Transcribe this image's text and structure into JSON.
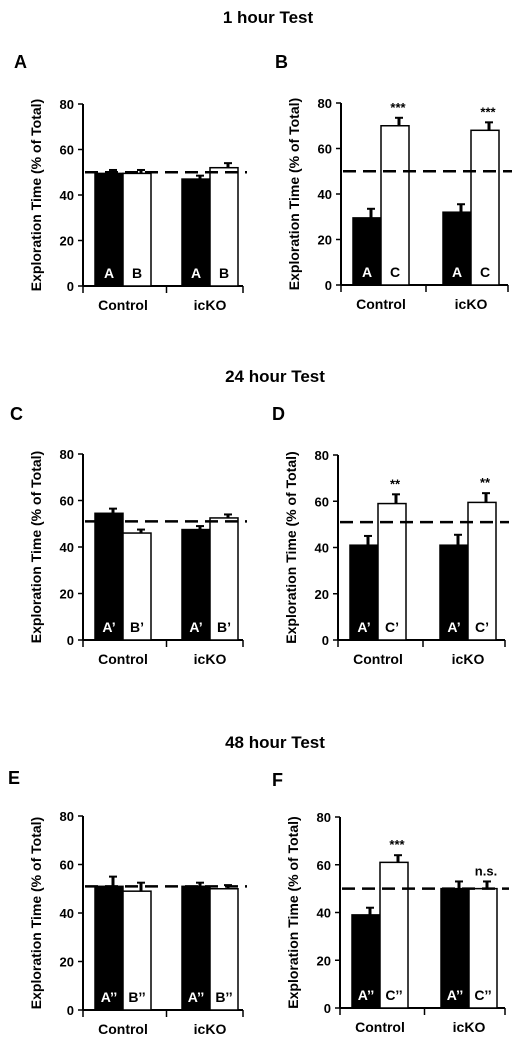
{
  "sections": [
    {
      "title": "1 hour Test"
    },
    {
      "title": "24 hour Test"
    },
    {
      "title": "48 hour Test"
    }
  ],
  "colors": {
    "filled_bar": "#000000",
    "open_bar": "#ffffff",
    "axis": "#000000"
  },
  "chart_data": [
    {
      "panel": "A",
      "type": "bar",
      "ylabel": "Exploration Time (% of Total)",
      "ylim": [
        0,
        80
      ],
      "yticks": [
        0,
        20,
        40,
        60,
        80
      ],
      "reference_line": 50,
      "grid": false,
      "categories": [
        "Control",
        "icKO"
      ],
      "series": [
        {
          "bar_labels": [
            "A",
            "A"
          ],
          "fill": "filled",
          "values": [
            49.5,
            47
          ],
          "errors": [
            1.5,
            1.5
          ],
          "significance": [
            "",
            ""
          ]
        },
        {
          "bar_labels": [
            "B",
            "B"
          ],
          "fill": "open",
          "values": [
            49.5,
            52
          ],
          "errors": [
            1.5,
            2
          ],
          "significance": [
            "",
            ""
          ]
        }
      ]
    },
    {
      "panel": "B",
      "type": "bar",
      "ylabel": "Exploration Time (% of Total)",
      "ylim": [
        0,
        80
      ],
      "yticks": [
        0,
        20,
        40,
        60,
        80
      ],
      "reference_line": 50,
      "grid": false,
      "categories": [
        "Control",
        "icKO"
      ],
      "series": [
        {
          "bar_labels": [
            "A",
            "A"
          ],
          "fill": "filled",
          "values": [
            29.5,
            32
          ],
          "errors": [
            4,
            3.5
          ],
          "significance": [
            "",
            ""
          ]
        },
        {
          "bar_labels": [
            "C",
            "C"
          ],
          "fill": "open",
          "values": [
            70,
            68
          ],
          "errors": [
            3.5,
            3.5
          ],
          "significance": [
            "***",
            "***"
          ]
        }
      ]
    },
    {
      "panel": "C",
      "type": "bar",
      "ylabel": "Exploration Time (% of Total)",
      "ylim": [
        0,
        80
      ],
      "yticks": [
        0,
        20,
        40,
        60,
        80
      ],
      "reference_line": 51,
      "grid": false,
      "categories": [
        "Control",
        "icKO"
      ],
      "series": [
        {
          "bar_labels": [
            "A’",
            "A’"
          ],
          "fill": "filled",
          "values": [
            54.5,
            47.5
          ],
          "errors": [
            2,
            1.5
          ],
          "significance": [
            "",
            ""
          ]
        },
        {
          "bar_labels": [
            "B’",
            "B’"
          ],
          "fill": "open",
          "values": [
            46,
            52.5
          ],
          "errors": [
            1.5,
            1.5
          ],
          "significance": [
            "",
            ""
          ]
        }
      ]
    },
    {
      "panel": "D",
      "type": "bar",
      "ylabel": "Exploration Time (% of Total)",
      "ylim": [
        0,
        80
      ],
      "yticks": [
        0,
        20,
        40,
        60,
        80
      ],
      "reference_line": 51,
      "grid": false,
      "categories": [
        "Control",
        "icKO"
      ],
      "series": [
        {
          "bar_labels": [
            "A’",
            "A’"
          ],
          "fill": "filled",
          "values": [
            41,
            41
          ],
          "errors": [
            4,
            4.5
          ],
          "significance": [
            "",
            ""
          ]
        },
        {
          "bar_labels": [
            "C’",
            "C’"
          ],
          "fill": "open",
          "values": [
            59,
            59.5
          ],
          "errors": [
            4,
            4
          ],
          "significance": [
            "**",
            "**"
          ]
        }
      ]
    },
    {
      "panel": "E",
      "type": "bar",
      "ylabel": "Exploration Time (% of Total)",
      "ylim": [
        0,
        80
      ],
      "yticks": [
        0,
        20,
        40,
        60,
        80
      ],
      "reference_line": 51,
      "grid": false,
      "categories": [
        "Control",
        "icKO"
      ],
      "series": [
        {
          "bar_labels": [
            "A’’",
            "A’’"
          ],
          "fill": "filled",
          "values": [
            51,
            51
          ],
          "errors": [
            4,
            1.5
          ],
          "significance": [
            "",
            ""
          ]
        },
        {
          "bar_labels": [
            "B’’",
            "B’’"
          ],
          "fill": "open",
          "values": [
            49,
            50
          ],
          "errors": [
            3.5,
            1.5
          ],
          "significance": [
            "",
            ""
          ]
        }
      ]
    },
    {
      "panel": "F",
      "type": "bar",
      "ylabel": "Exploration Time (% of Total)",
      "ylim": [
        0,
        80
      ],
      "yticks": [
        0,
        20,
        40,
        60,
        80
      ],
      "reference_line": 50,
      "grid": false,
      "categories": [
        "Control",
        "icKO"
      ],
      "series": [
        {
          "bar_labels": [
            "A’’",
            "A’’"
          ],
          "fill": "filled",
          "values": [
            39,
            50
          ],
          "errors": [
            3,
            3
          ],
          "significance": [
            "",
            ""
          ]
        },
        {
          "bar_labels": [
            "C’’",
            "C’’"
          ],
          "fill": "open",
          "values": [
            61,
            50
          ],
          "errors": [
            3,
            3
          ],
          "significance": [
            "***",
            "n.s."
          ]
        }
      ]
    }
  ]
}
